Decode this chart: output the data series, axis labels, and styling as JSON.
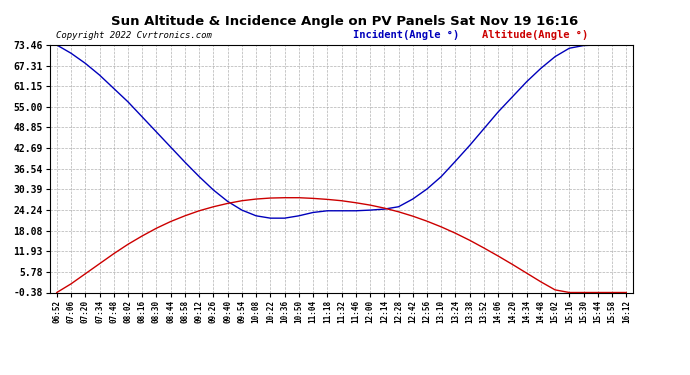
{
  "title": "Sun Altitude & Incidence Angle on PV Panels Sat Nov 19 16:16",
  "copyright": "Copyright 2022 Cvrtronics.com",
  "legend_incident": "Incident(Angle °)",
  "legend_altitude": "Altitude(Angle °)",
  "incident_color": "#0000bb",
  "altitude_color": "#cc0000",
  "background_color": "#ffffff",
  "grid_color": "#aaaaaa",
  "yticks": [
    -0.38,
    5.78,
    11.93,
    18.08,
    24.24,
    30.39,
    36.54,
    42.69,
    48.85,
    55.0,
    61.15,
    67.31,
    73.46
  ],
  "ylim_min": -0.38,
  "ylim_max": 73.46,
  "time_labels": [
    "06:52",
    "07:06",
    "07:20",
    "07:34",
    "07:48",
    "08:02",
    "08:16",
    "08:30",
    "08:44",
    "08:58",
    "09:12",
    "09:26",
    "09:40",
    "09:54",
    "10:08",
    "10:22",
    "10:36",
    "10:50",
    "11:04",
    "11:18",
    "11:32",
    "11:46",
    "12:00",
    "12:14",
    "12:28",
    "12:42",
    "12:56",
    "13:10",
    "13:24",
    "13:38",
    "13:52",
    "14:06",
    "14:20",
    "14:34",
    "14:48",
    "15:02",
    "15:16",
    "15:30",
    "15:44",
    "15:58",
    "16:12"
  ],
  "incident_values": [
    73.46,
    71.0,
    68.0,
    64.5,
    60.5,
    56.5,
    52.0,
    47.5,
    43.0,
    38.5,
    34.2,
    30.2,
    26.8,
    24.2,
    22.5,
    21.8,
    21.8,
    22.5,
    23.5,
    24.0,
    24.0,
    24.0,
    24.2,
    24.5,
    25.2,
    27.5,
    30.5,
    34.2,
    38.8,
    43.5,
    48.5,
    53.5,
    58.0,
    62.5,
    66.5,
    70.0,
    72.5,
    73.3,
    73.46,
    73.46,
    73.46
  ],
  "altitude_values": [
    -0.38,
    2.2,
    5.2,
    8.2,
    11.2,
    14.0,
    16.5,
    18.8,
    20.8,
    22.5,
    24.0,
    25.2,
    26.2,
    27.0,
    27.5,
    27.8,
    27.9,
    27.9,
    27.7,
    27.4,
    27.0,
    26.4,
    25.7,
    24.8,
    23.7,
    22.4,
    20.9,
    19.2,
    17.3,
    15.2,
    12.9,
    10.5,
    8.0,
    5.4,
    2.8,
    0.4,
    -0.38,
    -0.38,
    -0.38,
    -0.38,
    -0.38
  ]
}
